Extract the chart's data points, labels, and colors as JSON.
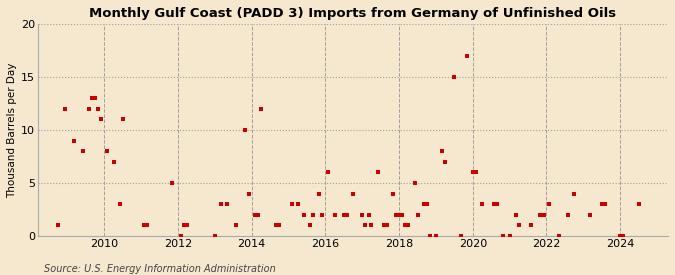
{
  "title": "Monthly Gulf Coast (PADD 3) Imports from Germany of Unfinished Oils",
  "ylabel": "Thousand Barrels per Day",
  "source": "Source: U.S. Energy Information Administration",
  "background_color": "#f5e8ce",
  "plot_background_color": "#f5e8ce",
  "marker_color": "#cc0000",
  "ylim": [
    0,
    20
  ],
  "yticks": [
    0,
    5,
    10,
    15,
    20
  ],
  "xlim_start": 2008.2,
  "xlim_end": 2025.3,
  "xticks": [
    2010,
    2012,
    2014,
    2016,
    2018,
    2020,
    2022,
    2024
  ],
  "data_points": [
    [
      2008.75,
      1
    ],
    [
      2008.92,
      12
    ],
    [
      2009.17,
      9
    ],
    [
      2009.42,
      8
    ],
    [
      2009.58,
      12
    ],
    [
      2009.67,
      13
    ],
    [
      2009.75,
      13
    ],
    [
      2009.83,
      12
    ],
    [
      2009.92,
      11
    ],
    [
      2010.08,
      8
    ],
    [
      2010.25,
      7
    ],
    [
      2010.42,
      3
    ],
    [
      2010.5,
      11
    ],
    [
      2011.08,
      1
    ],
    [
      2011.17,
      1
    ],
    [
      2011.83,
      5
    ],
    [
      2012.08,
      0
    ],
    [
      2012.17,
      1
    ],
    [
      2012.25,
      1
    ],
    [
      2013.0,
      0
    ],
    [
      2013.17,
      3
    ],
    [
      2013.33,
      3
    ],
    [
      2013.58,
      1
    ],
    [
      2013.83,
      10
    ],
    [
      2013.92,
      4
    ],
    [
      2014.08,
      2
    ],
    [
      2014.17,
      2
    ],
    [
      2014.25,
      12
    ],
    [
      2014.67,
      1
    ],
    [
      2014.75,
      1
    ],
    [
      2015.08,
      3
    ],
    [
      2015.25,
      3
    ],
    [
      2015.42,
      2
    ],
    [
      2015.58,
      1
    ],
    [
      2015.67,
      2
    ],
    [
      2015.83,
      4
    ],
    [
      2015.92,
      2
    ],
    [
      2016.08,
      6
    ],
    [
      2016.25,
      2
    ],
    [
      2016.5,
      2
    ],
    [
      2016.58,
      2
    ],
    [
      2016.75,
      4
    ],
    [
      2017.0,
      2
    ],
    [
      2017.08,
      1
    ],
    [
      2017.17,
      2
    ],
    [
      2017.25,
      1
    ],
    [
      2017.42,
      6
    ],
    [
      2017.58,
      1
    ],
    [
      2017.67,
      1
    ],
    [
      2017.83,
      4
    ],
    [
      2017.92,
      2
    ],
    [
      2018.0,
      2
    ],
    [
      2018.08,
      2
    ],
    [
      2018.17,
      1
    ],
    [
      2018.25,
      1
    ],
    [
      2018.42,
      5
    ],
    [
      2018.5,
      2
    ],
    [
      2018.67,
      3
    ],
    [
      2018.75,
      3
    ],
    [
      2018.83,
      0
    ],
    [
      2019.0,
      0
    ],
    [
      2019.17,
      8
    ],
    [
      2019.25,
      7
    ],
    [
      2019.5,
      15
    ],
    [
      2019.67,
      0
    ],
    [
      2019.83,
      17
    ],
    [
      2020.0,
      6
    ],
    [
      2020.08,
      6
    ],
    [
      2020.25,
      3
    ],
    [
      2020.58,
      3
    ],
    [
      2020.67,
      3
    ],
    [
      2020.83,
      0
    ],
    [
      2021.0,
      0
    ],
    [
      2021.17,
      2
    ],
    [
      2021.25,
      1
    ],
    [
      2021.58,
      1
    ],
    [
      2021.83,
      2
    ],
    [
      2021.92,
      2
    ],
    [
      2022.08,
      3
    ],
    [
      2022.33,
      0
    ],
    [
      2022.58,
      2
    ],
    [
      2022.75,
      4
    ],
    [
      2023.17,
      2
    ],
    [
      2023.5,
      3
    ],
    [
      2023.58,
      3
    ],
    [
      2024.0,
      0
    ],
    [
      2024.08,
      0
    ],
    [
      2024.5,
      3
    ]
  ]
}
